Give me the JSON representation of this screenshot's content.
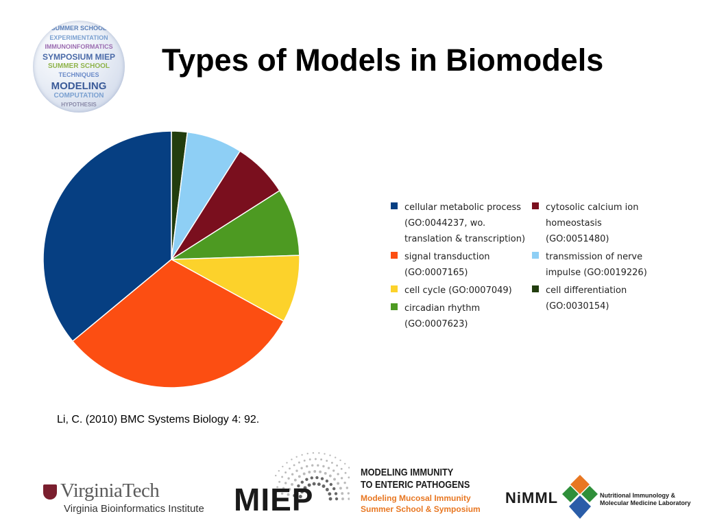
{
  "title": "Types of Models in Biomodels",
  "header_logo": {
    "icon": "globe-word-cloud-logo",
    "words": [
      "SUMMER SCHOOL",
      "EXPERIMENTATION",
      "IMMUNOINFORMATICS",
      "SYMPOSIUM MIEP",
      "SUMMER SCHOOL",
      "TECHNIQUES",
      "MODELING",
      "COMPUTATION",
      "HYPOTHESIS"
    ]
  },
  "chart_data": {
    "type": "pie",
    "title": "",
    "start_angle_deg": 0,
    "direction": "clockwise",
    "slices": [
      {
        "label": "cell differentiation\n(GO:0030154)",
        "value": 2.0,
        "color": "#223d0e"
      },
      {
        "label": "transmission of nerve\nimpulse (GO:0019226)",
        "value": 7.0,
        "color": "#8ecff5"
      },
      {
        "label": "cytosolic calcium ion\nhomeostasis\n(GO:0051480)",
        "value": 7.0,
        "color": "#7a0f1e"
      },
      {
        "label": "circadian rhythm\n(GO:0007623)",
        "value": 8.5,
        "color": "#4d9a22"
      },
      {
        "label": "cell cycle (GO:0007049)",
        "value": 8.5,
        "color": "#fcd22b"
      },
      {
        "label": "signal transduction\n(GO:0007165)",
        "value": 31.0,
        "color": "#fc4e12"
      },
      {
        "label": "cellular metabolic process\n(GO:0044237, wo.\ntranslation & transcription)",
        "value": 36.0,
        "color": "#063f82"
      }
    ],
    "legend": {
      "placement": "right",
      "columns": [
        [
          {
            "label": "cellular metabolic process\n(GO:0044237, wo.\ntranslation & transcription)",
            "color": "#063f82"
          },
          {
            "label": "signal transduction\n(GO:0007165)",
            "color": "#fc4e12"
          },
          {
            "label": "cell cycle (GO:0007049)",
            "color": "#fcd22b"
          },
          {
            "label": "circadian rhythm\n(GO:0007623)",
            "color": "#4d9a22"
          }
        ],
        [
          {
            "label": "cytosolic calcium ion\nhomeostasis\n(GO:0051480)",
            "color": "#7a0f1e"
          },
          {
            "label": "transmission of nerve\nimpulse (GO:0019226)",
            "color": "#8ecff5"
          },
          {
            "label": "cell differentiation\n(GO:0030154)",
            "color": "#223d0e"
          }
        ]
      ]
    }
  },
  "citation": "Li, C. (2010) BMC Systems Biology 4: 92.",
  "footer": {
    "virginia_tech": {
      "name": "VirginiaTech",
      "sub": "Virginia Bioinformatics Institute",
      "color": "#7a1e2e"
    },
    "miep": {
      "mark": "MIEP",
      "line1": "MODELING IMMUNITY",
      "line2": "TO ENTERIC PATHOGENS",
      "line3": "Modeling Mucosal Immunity",
      "line4": "Summer School & Symposium",
      "accent": "#e87722"
    },
    "nimml": {
      "mark": "NiMML",
      "line1": "Nutritional Immunology &",
      "line2": "Molecular Medicine Laboratory",
      "colors": [
        "#e87722",
        "#2f8f3a",
        "#2a5da8"
      ]
    }
  }
}
